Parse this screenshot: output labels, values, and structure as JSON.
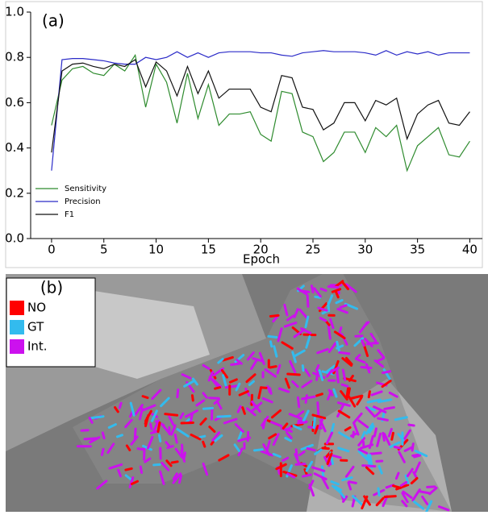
{
  "chart_data": {
    "type": "line",
    "panel_label": "(a)",
    "x_label": "Epoch",
    "x": [
      0,
      1,
      2,
      3,
      4,
      5,
      6,
      7,
      8,
      9,
      10,
      11,
      12,
      13,
      14,
      15,
      16,
      17,
      18,
      19,
      20,
      21,
      22,
      23,
      24,
      25,
      26,
      27,
      28,
      29,
      30,
      31,
      32,
      33,
      34,
      35,
      36,
      37,
      38,
      39,
      40
    ],
    "series": [
      {
        "name": "Sensitivity",
        "color": "#2e8b2e",
        "values": [
          0.5,
          0.7,
          0.75,
          0.76,
          0.73,
          0.72,
          0.77,
          0.74,
          0.81,
          0.58,
          0.77,
          0.69,
          0.51,
          0.73,
          0.53,
          0.68,
          0.5,
          0.55,
          0.55,
          0.56,
          0.46,
          0.43,
          0.65,
          0.64,
          0.47,
          0.45,
          0.34,
          0.38,
          0.47,
          0.47,
          0.38,
          0.49,
          0.45,
          0.5,
          0.3,
          0.41,
          0.45,
          0.49,
          0.37,
          0.36,
          0.43
        ]
      },
      {
        "name": "Precision",
        "color": "#2b2bc8",
        "values": [
          0.3,
          0.79,
          0.795,
          0.795,
          0.79,
          0.785,
          0.775,
          0.77,
          0.77,
          0.8,
          0.79,
          0.8,
          0.825,
          0.8,
          0.82,
          0.8,
          0.82,
          0.825,
          0.825,
          0.825,
          0.82,
          0.82,
          0.81,
          0.805,
          0.82,
          0.825,
          0.83,
          0.825,
          0.825,
          0.825,
          0.82,
          0.81,
          0.83,
          0.81,
          0.825,
          0.815,
          0.825,
          0.81,
          0.82,
          0.82,
          0.82
        ]
      },
      {
        "name": "F1",
        "color": "#111111",
        "values": [
          0.38,
          0.74,
          0.77,
          0.775,
          0.76,
          0.75,
          0.77,
          0.76,
          0.79,
          0.67,
          0.78,
          0.74,
          0.63,
          0.76,
          0.64,
          0.74,
          0.62,
          0.66,
          0.66,
          0.66,
          0.58,
          0.56,
          0.72,
          0.71,
          0.58,
          0.57,
          0.48,
          0.51,
          0.6,
          0.6,
          0.52,
          0.61,
          0.59,
          0.62,
          0.44,
          0.55,
          0.59,
          0.61,
          0.51,
          0.5,
          0.56
        ]
      }
    ],
    "xlim": [
      -2,
      41.2
    ],
    "ylim": [
      0,
      1
    ],
    "xticks": [
      0,
      5,
      10,
      15,
      20,
      25,
      30,
      35,
      40
    ],
    "yticks": [
      {
        "value": 0,
        "label": "0.0"
      },
      0.2,
      0.4,
      0.6,
      0.8,
      {
        "value": 1,
        "label": "1.0"
      }
    ],
    "legend": "lower left"
  },
  "image": {
    "panel_label": "(b)",
    "legend": [
      {
        "name": "NO",
        "color": "#ff0000"
      },
      {
        "name": "GT",
        "color": "#33bbee"
      },
      {
        "name": "Int.",
        "color": "#cc11ee"
      }
    ]
  }
}
